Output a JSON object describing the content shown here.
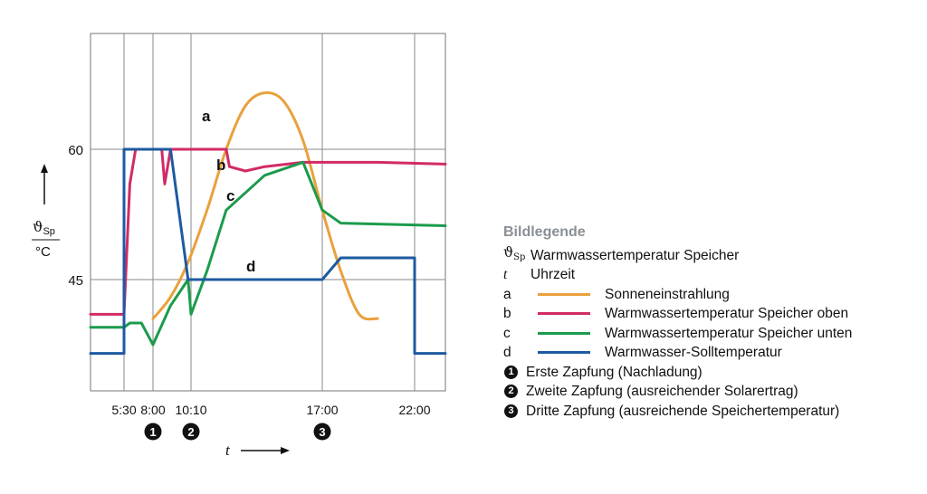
{
  "chart_data": {
    "type": "line",
    "xlabel": "t",
    "ylabel": "ϑSp / °C",
    "x_ticks": [
      "5:30",
      "8:00",
      "10:10",
      "17:00",
      "22:00"
    ],
    "y_ticks": [
      "60",
      "45"
    ],
    "events": [
      {
        "num": "1",
        "x": "8:00"
      },
      {
        "num": "2",
        "x": "10:10"
      },
      {
        "num": "3",
        "x": "17:00"
      }
    ],
    "series": [
      {
        "name": "a",
        "color": "#e9a13b",
        "x": [
          "8:00",
          "9:00",
          "10:00",
          "11:00",
          "12:00",
          "13:00",
          "14:00",
          "15:00",
          "16:00",
          "17:00",
          "18:00",
          "19:00",
          "20:00"
        ],
        "y": [
          40.5,
          43,
          47,
          53,
          60,
          65,
          66.5,
          65.5,
          61,
          53,
          46,
          41,
          40.5
        ]
      },
      {
        "name": "b",
        "color": "#d12b66",
        "x": [
          "4:00",
          "5:30",
          "6:00",
          "6:30",
          "8:00",
          "8:30",
          "8:40",
          "9:00",
          "12:00",
          "12:10",
          "13:00",
          "14:00",
          "16:00",
          "20:00",
          "24:00"
        ],
        "y": [
          41,
          41,
          56,
          60,
          60,
          60,
          56,
          60,
          60,
          58,
          57.5,
          58,
          58.5,
          58.5,
          58.3
        ]
      },
      {
        "name": "c",
        "color": "#1c9b4c",
        "x": [
          "4:00",
          "5:30",
          "6:00",
          "7:00",
          "8:00",
          "9:00",
          "10:00",
          "10:10",
          "11:00",
          "12:00",
          "14:00",
          "16:00",
          "17:00",
          "18:00",
          "24:00"
        ],
        "y": [
          39.5,
          39.5,
          40,
          40,
          37.5,
          42,
          45,
          41,
          46,
          53,
          57,
          58.5,
          53,
          51.5,
          51.2
        ]
      },
      {
        "name": "d",
        "color": "#1e5aa0",
        "x": [
          "4:00",
          "5:30",
          "5:30",
          "6:30",
          "8:00",
          "9:00",
          "10:00",
          "11:00",
          "13:00",
          "17:00",
          "18:00",
          "22:00",
          "22:00",
          "24:00"
        ],
        "y": [
          36.5,
          36.5,
          60,
          60,
          60,
          60,
          45,
          45,
          45,
          45,
          47.5,
          47.5,
          36.5,
          36.5
        ]
      }
    ],
    "labels": {
      "a": "a",
      "b": "b",
      "c": "c",
      "d": "d"
    },
    "grid": true
  },
  "legend": {
    "title": "Bildlegende",
    "rows": [
      {
        "key": "ϑSp",
        "text": "Warmwassertemperatur Speicher"
      },
      {
        "key": "t",
        "text": "Uhrzeit"
      },
      {
        "key": "a",
        "text": "Sonneneinstrahlung",
        "color": "#e9a13b"
      },
      {
        "key": "b",
        "text": "Warmwassertemperatur Speicher oben",
        "color": "#d12b66"
      },
      {
        "key": "c",
        "text": "Warmwassertemperatur Speicher unten",
        "color": "#1c9b4c"
      },
      {
        "key": "d",
        "text": "Warmwasser-Solltemperatur",
        "color": "#1e5aa0"
      },
      {
        "key": "1",
        "text": "Erste Zapfung (Nachladung)"
      },
      {
        "key": "2",
        "text": "Zweite Zapfung (ausreichender Solarertrag)"
      },
      {
        "key": "3",
        "text": "Dritte Zapfung (ausreichende Speichertemperatur)"
      }
    ]
  }
}
